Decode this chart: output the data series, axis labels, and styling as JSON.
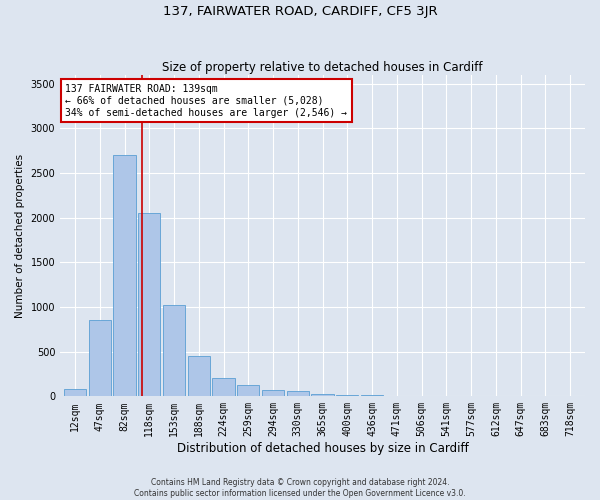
{
  "title": "137, FAIRWATER ROAD, CARDIFF, CF5 3JR",
  "subtitle": "Size of property relative to detached houses in Cardiff",
  "xlabel": "Distribution of detached houses by size in Cardiff",
  "ylabel": "Number of detached properties",
  "footer_line1": "Contains HM Land Registry data © Crown copyright and database right 2024.",
  "footer_line2": "Contains public sector information licensed under the Open Government Licence v3.0.",
  "bar_labels": [
    "12sqm",
    "47sqm",
    "82sqm",
    "118sqm",
    "153sqm",
    "188sqm",
    "224sqm",
    "259sqm",
    "294sqm",
    "330sqm",
    "365sqm",
    "400sqm",
    "436sqm",
    "471sqm",
    "506sqm",
    "541sqm",
    "577sqm",
    "612sqm",
    "647sqm",
    "683sqm",
    "718sqm"
  ],
  "bar_values": [
    80,
    850,
    2700,
    2050,
    1020,
    450,
    200,
    130,
    70,
    55,
    30,
    20,
    10,
    5,
    2,
    1,
    0,
    0,
    0,
    0,
    0
  ],
  "bar_color": "#aec6e8",
  "bar_edgecolor": "#5a9fd4",
  "property_line_x": 2.72,
  "property_line_color": "#cc0000",
  "annotation_text": "137 FAIRWATER ROAD: 139sqm\n← 66% of detached houses are smaller (5,028)\n34% of semi-detached houses are larger (2,546) →",
  "annotation_box_color": "white",
  "annotation_box_edgecolor": "#cc0000",
  "ylim": [
    0,
    3600
  ],
  "yticks": [
    0,
    500,
    1000,
    1500,
    2000,
    2500,
    3000,
    3500
  ],
  "background_color": "#dde5f0",
  "plot_background_color": "#dde5f0",
  "title_fontsize": 9.5,
  "subtitle_fontsize": 8.5,
  "xlabel_fontsize": 8.5,
  "ylabel_fontsize": 7.5,
  "tick_fontsize": 7,
  "annotation_fontsize": 7,
  "footer_fontsize": 5.5
}
